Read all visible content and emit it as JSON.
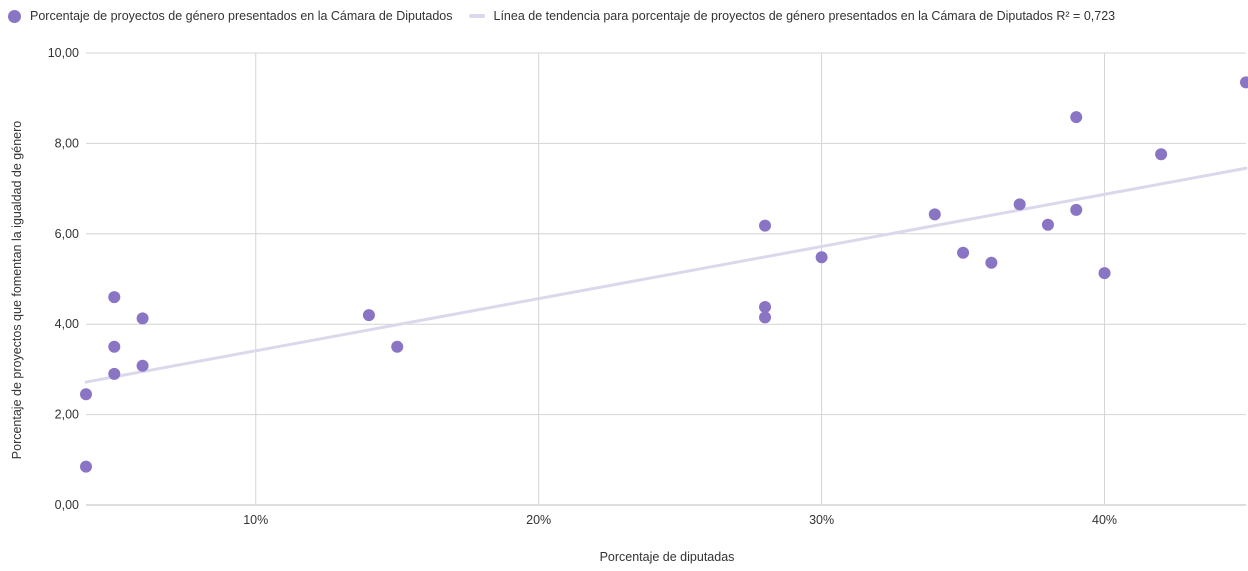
{
  "legend": {
    "series_label": "Porcentaje de proyectos de género presentados en la Cámara de Diputados",
    "trend_label": "Línea de tendencia para porcentaje de proyectos de género presentados en la Cámara de Diputados R² = 0,723"
  },
  "colors": {
    "points": "#8a74c4",
    "trendline": "#dcd8ec",
    "grid": "#d4d4d4"
  },
  "chart_data": {
    "type": "scatter",
    "title": "",
    "xlabel": "Porcentaje de diputadas",
    "ylabel": "Porcentaje de proyectos que fomentan la igualdad de género",
    "xlim": [
      4,
      45
    ],
    "ylim": [
      0,
      10
    ],
    "x_ticks": [
      10,
      20,
      30,
      40
    ],
    "x_tick_labels": [
      "10%",
      "20%",
      "30%",
      "40%"
    ],
    "y_ticks": [
      0,
      2,
      4,
      6,
      8,
      10
    ],
    "y_tick_labels": [
      "0,00",
      "2,00",
      "4,00",
      "6,00",
      "8,00",
      "10,00"
    ],
    "grid": true,
    "legend_position": "top-left",
    "series": [
      {
        "name": "Porcentaje de proyectos de género presentados en la Cámara de Diputados",
        "points": [
          {
            "x": 4,
            "y": 2.45
          },
          {
            "x": 4,
            "y": 0.85
          },
          {
            "x": 5,
            "y": 4.6
          },
          {
            "x": 5,
            "y": 3.5
          },
          {
            "x": 5,
            "y": 2.9
          },
          {
            "x": 6,
            "y": 4.13
          },
          {
            "x": 6,
            "y": 3.08
          },
          {
            "x": 14,
            "y": 4.2
          },
          {
            "x": 15,
            "y": 3.5
          },
          {
            "x": 28,
            "y": 6.18
          },
          {
            "x": 28,
            "y": 4.38
          },
          {
            "x": 28,
            "y": 4.15
          },
          {
            "x": 30,
            "y": 5.48
          },
          {
            "x": 34,
            "y": 6.43
          },
          {
            "x": 35,
            "y": 5.58
          },
          {
            "x": 36,
            "y": 5.36
          },
          {
            "x": 37,
            "y": 6.65
          },
          {
            "x": 38,
            "y": 6.2
          },
          {
            "x": 39,
            "y": 8.58
          },
          {
            "x": 39,
            "y": 6.53
          },
          {
            "x": 40,
            "y": 5.13
          },
          {
            "x": 42,
            "y": 7.76
          },
          {
            "x": 45,
            "y": 9.35
          }
        ]
      }
    ],
    "trendline": {
      "name": "Línea de tendencia para porcentaje de proyectos de género presentados en la Cámara de Diputados",
      "r_squared": "0,723",
      "start": {
        "x": 4,
        "y": 2.72
      },
      "end": {
        "x": 45,
        "y": 7.45
      }
    }
  }
}
